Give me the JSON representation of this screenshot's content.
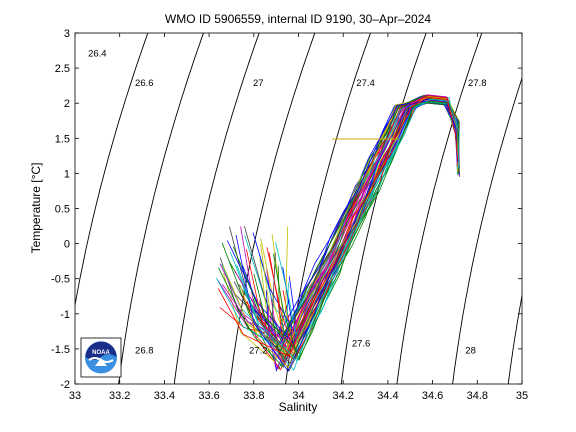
{
  "chart_data": {
    "type": "line",
    "title": "WMO ID 5906559, internal ID 9190, 30–Apr–2024",
    "xlabel": "Salinity",
    "ylabel": "Temperature [°C]",
    "xlim": [
      33,
      35
    ],
    "ylim": [
      -2,
      3
    ],
    "xticks": [
      "33",
      "33.2",
      "33.4",
      "33.6",
      "33.8",
      "34",
      "34.2",
      "34.4",
      "34.6",
      "34.8",
      "35"
    ],
    "yticks": [
      "-2",
      "-1.5",
      "-1",
      "-0.5",
      "0",
      "0.5",
      "1",
      "1.5",
      "2",
      "2.5",
      "3"
    ],
    "grid": false,
    "legend": "none",
    "isopycnals": [
      {
        "sigma": 26.4,
        "label": "26.4",
        "label_at": [
          33.1,
          2.71
        ]
      },
      {
        "sigma": 26.6,
        "label": "26.6",
        "label_at": [
          33.31,
          2.29
        ]
      },
      {
        "sigma": 26.8,
        "label": "26.8",
        "label_at": [
          33.31,
          -1.52
        ]
      },
      {
        "sigma": 27.0,
        "label": "27",
        "label_at": [
          33.82,
          2.29
        ]
      },
      {
        "sigma": 27.2,
        "label": "27.2",
        "label_at": [
          33.82,
          -1.52
        ]
      },
      {
        "sigma": 27.4,
        "label": "27.4",
        "label_at": [
          34.3,
          2.29
        ]
      },
      {
        "sigma": 27.6,
        "label": "27.6",
        "label_at": [
          34.28,
          -1.42
        ]
      },
      {
        "sigma": 27.8,
        "label": "27.8",
        "label_at": [
          34.8,
          2.29
        ]
      },
      {
        "sigma": 28.0,
        "label": "28",
        "label_at": [
          34.77,
          -1.52
        ]
      }
    ],
    "highlight_segment": {
      "color": "#ccaa00",
      "x": [
        34.15,
        34.45
      ],
      "y": [
        1.49,
        1.49
      ]
    },
    "profile_count": 60,
    "profile_colors": [
      "#0000ff",
      "#007f00",
      "#ff0000",
      "#00bfbf",
      "#bf00bf",
      "#bfbf00",
      "#3f3f3f"
    ],
    "series": []
  },
  "logo": {
    "text": "NOAA",
    "colors": [
      "#1a2f8a",
      "#3a8fe0",
      "#ffffff"
    ]
  }
}
